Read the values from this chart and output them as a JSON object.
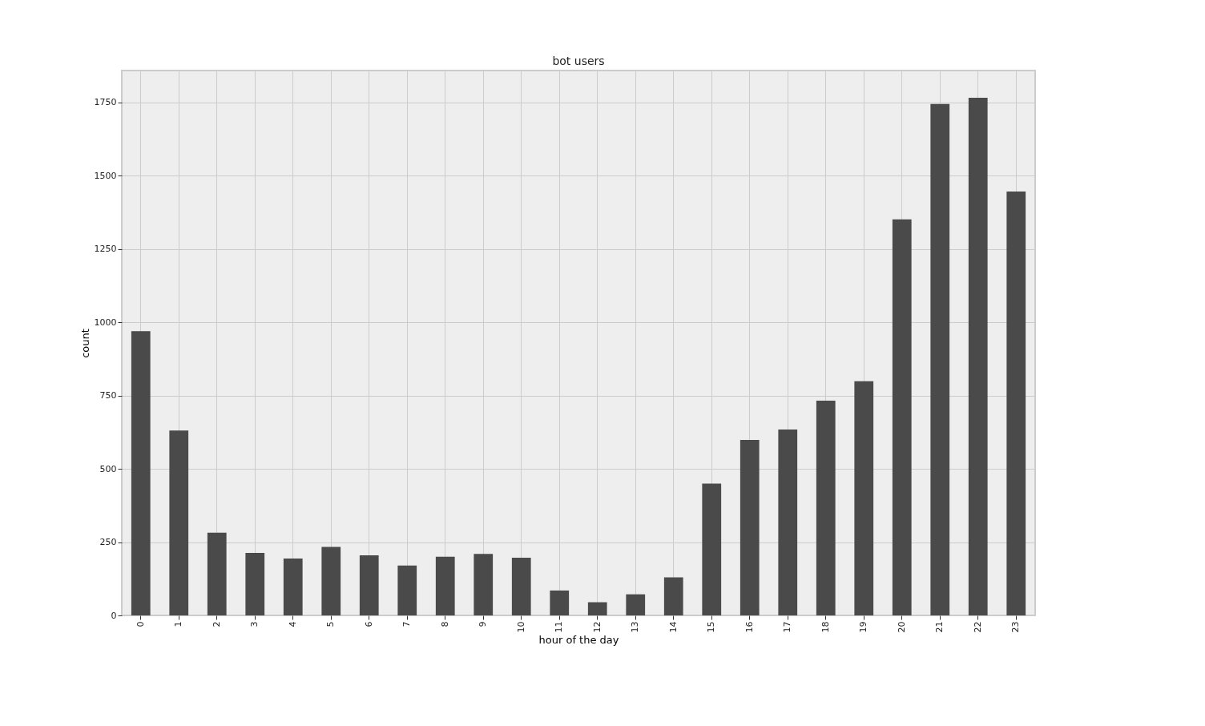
{
  "chart_data": {
    "type": "bar",
    "title": "bot users",
    "xlabel": "hour of the day",
    "ylabel": "count",
    "categories": [
      "0",
      "1",
      "2",
      "3",
      "4",
      "5",
      "6",
      "7",
      "8",
      "9",
      "10",
      "11",
      "12",
      "13",
      "14",
      "15",
      "16",
      "17",
      "18",
      "19",
      "20",
      "21",
      "22",
      "23"
    ],
    "values": [
      970,
      631,
      282,
      213,
      194,
      234,
      205,
      170,
      200,
      210,
      197,
      85,
      45,
      72,
      130,
      450,
      599,
      634,
      733,
      799,
      1351,
      1745,
      1766,
      1446
    ],
    "color": "#4a4a4a",
    "ylim": [
      0,
      1859
    ],
    "yticks": [
      0,
      250,
      500,
      750,
      1000,
      1250,
      1500,
      1750
    ],
    "grid": true
  }
}
